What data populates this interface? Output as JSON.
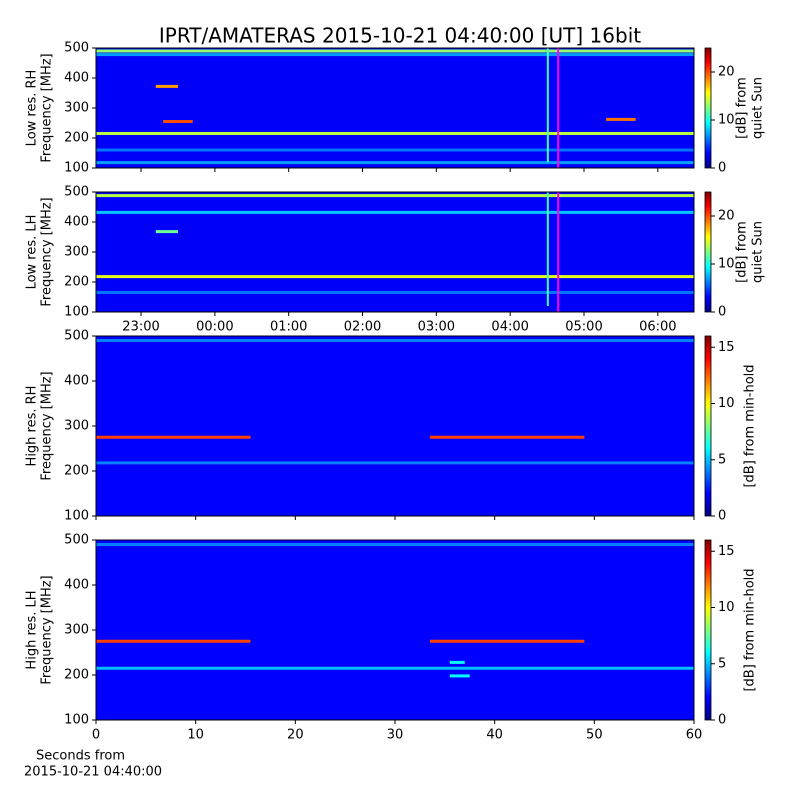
{
  "chart_data": [
    {
      "type": "heatmap",
      "title": "IPRT/AMATERAS 2015-10-21 04:40:00 [UT]   16bit",
      "ylabel": [
        "Low res. RH",
        "Frequency [MHz]"
      ],
      "xlim": [
        22.39,
        30.49
      ],
      "xticks": [
        23,
        24,
        25,
        26,
        27,
        28,
        29,
        30
      ],
      "ylim": [
        100,
        500
      ],
      "yticks": [
        100,
        200,
        300,
        400,
        500
      ],
      "clim": [
        0,
        25
      ],
      "cticks": [
        0,
        10,
        20
      ],
      "clabel": [
        "[dB] from",
        "quiet Sun"
      ],
      "colormap": [
        "#00007f",
        "#0000ff",
        "#007fff",
        "#00ffff",
        "#7fff7f",
        "#ffff00",
        "#ff7f00",
        "#ff0000",
        "#7f0000"
      ],
      "background": 3,
      "bands": [
        {
          "y": 490,
          "level": 13,
          "x": [
            22.39,
            30.49
          ]
        },
        {
          "y": 478,
          "level": 7,
          "x": [
            22.39,
            30.49
          ]
        },
        {
          "y": 215,
          "level": 14,
          "x": [
            22.39,
            30.49
          ]
        },
        {
          "y": 160,
          "level": 6,
          "x": [
            22.39,
            30.49
          ]
        },
        {
          "y": 118,
          "level": 7,
          "x": [
            22.39,
            30.49
          ]
        },
        {
          "y": 372,
          "level": 18,
          "x": [
            23.2,
            23.5
          ]
        },
        {
          "y": 255,
          "level": 20,
          "x": [
            23.3,
            23.7
          ]
        },
        {
          "y": 262,
          "level": 19,
          "x": [
            29.3,
            29.7
          ]
        }
      ],
      "vlines": [
        {
          "x": 28.51,
          "level": 11,
          "y": [
            120,
            500
          ]
        },
        {
          "x": 28.65,
          "color": "#ff00ff",
          "y": [
            100,
            500
          ]
        }
      ]
    },
    {
      "type": "heatmap",
      "ylabel": [
        "Low res. LH",
        "Frequency [MHz]"
      ],
      "xlim": [
        22.39,
        30.49
      ],
      "xticks": [
        {
          "value": 23,
          "label": "23:00"
        },
        {
          "value": 24,
          "label": "00:00"
        },
        {
          "value": 25,
          "label": "01:00"
        },
        {
          "value": 26,
          "label": "02:00"
        },
        {
          "value": 27,
          "label": "03:00"
        },
        {
          "value": 28,
          "label": "04:00"
        },
        {
          "value": 29,
          "label": "05:00"
        },
        {
          "value": 30,
          "label": "06:00"
        }
      ],
      "ylim": [
        100,
        500
      ],
      "yticks": [
        100,
        200,
        300,
        400,
        500
      ],
      "clim": [
        0,
        25
      ],
      "cticks": [
        0,
        10,
        20
      ],
      "clabel": [
        "[dB] from",
        "quiet Sun"
      ],
      "colormap": [
        "#00007f",
        "#0000ff",
        "#007fff",
        "#00ffff",
        "#7fff7f",
        "#ffff00",
        "#ff7f00",
        "#ff0000",
        "#7f0000"
      ],
      "background": 3,
      "bands": [
        {
          "y": 488,
          "level": 14,
          "x": [
            22.39,
            30.49
          ]
        },
        {
          "y": 432,
          "level": 8,
          "x": [
            22.39,
            30.49
          ]
        },
        {
          "y": 218,
          "level": 15,
          "x": [
            22.39,
            30.49
          ]
        },
        {
          "y": 165,
          "level": 6,
          "x": [
            22.39,
            30.49
          ]
        },
        {
          "y": 368,
          "level": 12,
          "x": [
            23.2,
            23.5
          ]
        }
      ],
      "vlines": [
        {
          "x": 28.51,
          "level": 11,
          "y": [
            120,
            500
          ]
        },
        {
          "x": 28.65,
          "color": "#ff00ff",
          "y": [
            100,
            500
          ]
        }
      ]
    },
    {
      "type": "heatmap",
      "ylabel": [
        "High res. RH",
        "Frequency [MHz]"
      ],
      "xlim": [
        0,
        60
      ],
      "xticks": [
        0,
        10,
        20,
        30,
        40,
        50,
        60
      ],
      "ylim": [
        100,
        500
      ],
      "yticks": [
        100,
        200,
        300,
        400,
        500
      ],
      "clim": [
        0,
        16
      ],
      "cticks": [
        0,
        5,
        10,
        15
      ],
      "clabel": [
        "[dB] from min-hold"
      ],
      "colormap": [
        "#00007f",
        "#0000ff",
        "#007fff",
        "#00ffff",
        "#7fff7f",
        "#ffff00",
        "#ff7f00",
        "#ff0000",
        "#7f0000"
      ],
      "background": 2,
      "bands": [
        {
          "y": 490,
          "level": 4,
          "x": [
            0,
            60
          ]
        },
        {
          "y": 218,
          "level": 4,
          "x": [
            0,
            60
          ]
        },
        {
          "y": 275,
          "level": 13,
          "x": [
            0,
            15.5
          ]
        },
        {
          "y": 275,
          "level": 13,
          "x": [
            33.5,
            49
          ]
        }
      ]
    },
    {
      "type": "heatmap",
      "ylabel": [
        "High res. LH",
        "Frequency [MHz]"
      ],
      "xlim": [
        0,
        60
      ],
      "xticks": [
        0,
        10,
        20,
        30,
        40,
        50,
        60
      ],
      "xlabel": [
        "Seconds from",
        "2015-10-21 04:40:00"
      ],
      "ylim": [
        100,
        500
      ],
      "yticks": [
        100,
        200,
        300,
        400,
        500
      ],
      "clim": [
        0,
        16
      ],
      "cticks": [
        0,
        5,
        10,
        15
      ],
      "clabel": [
        "[dB] from min-hold"
      ],
      "colormap": [
        "#00007f",
        "#0000ff",
        "#007fff",
        "#00ffff",
        "#7fff7f",
        "#ffff00",
        "#ff7f00",
        "#ff0000",
        "#7f0000"
      ],
      "background": 2,
      "bands": [
        {
          "y": 490,
          "level": 4,
          "x": [
            0,
            60
          ]
        },
        {
          "y": 215,
          "level": 5,
          "x": [
            0,
            60
          ]
        },
        {
          "y": 275,
          "level": 13,
          "x": [
            0,
            15.5
          ]
        },
        {
          "y": 275,
          "level": 13,
          "x": [
            33.5,
            49
          ]
        },
        {
          "y": 228,
          "level": 6,
          "x": [
            35.5,
            37
          ]
        },
        {
          "y": 198,
          "level": 6,
          "x": [
            35.5,
            37.5
          ]
        }
      ]
    }
  ]
}
